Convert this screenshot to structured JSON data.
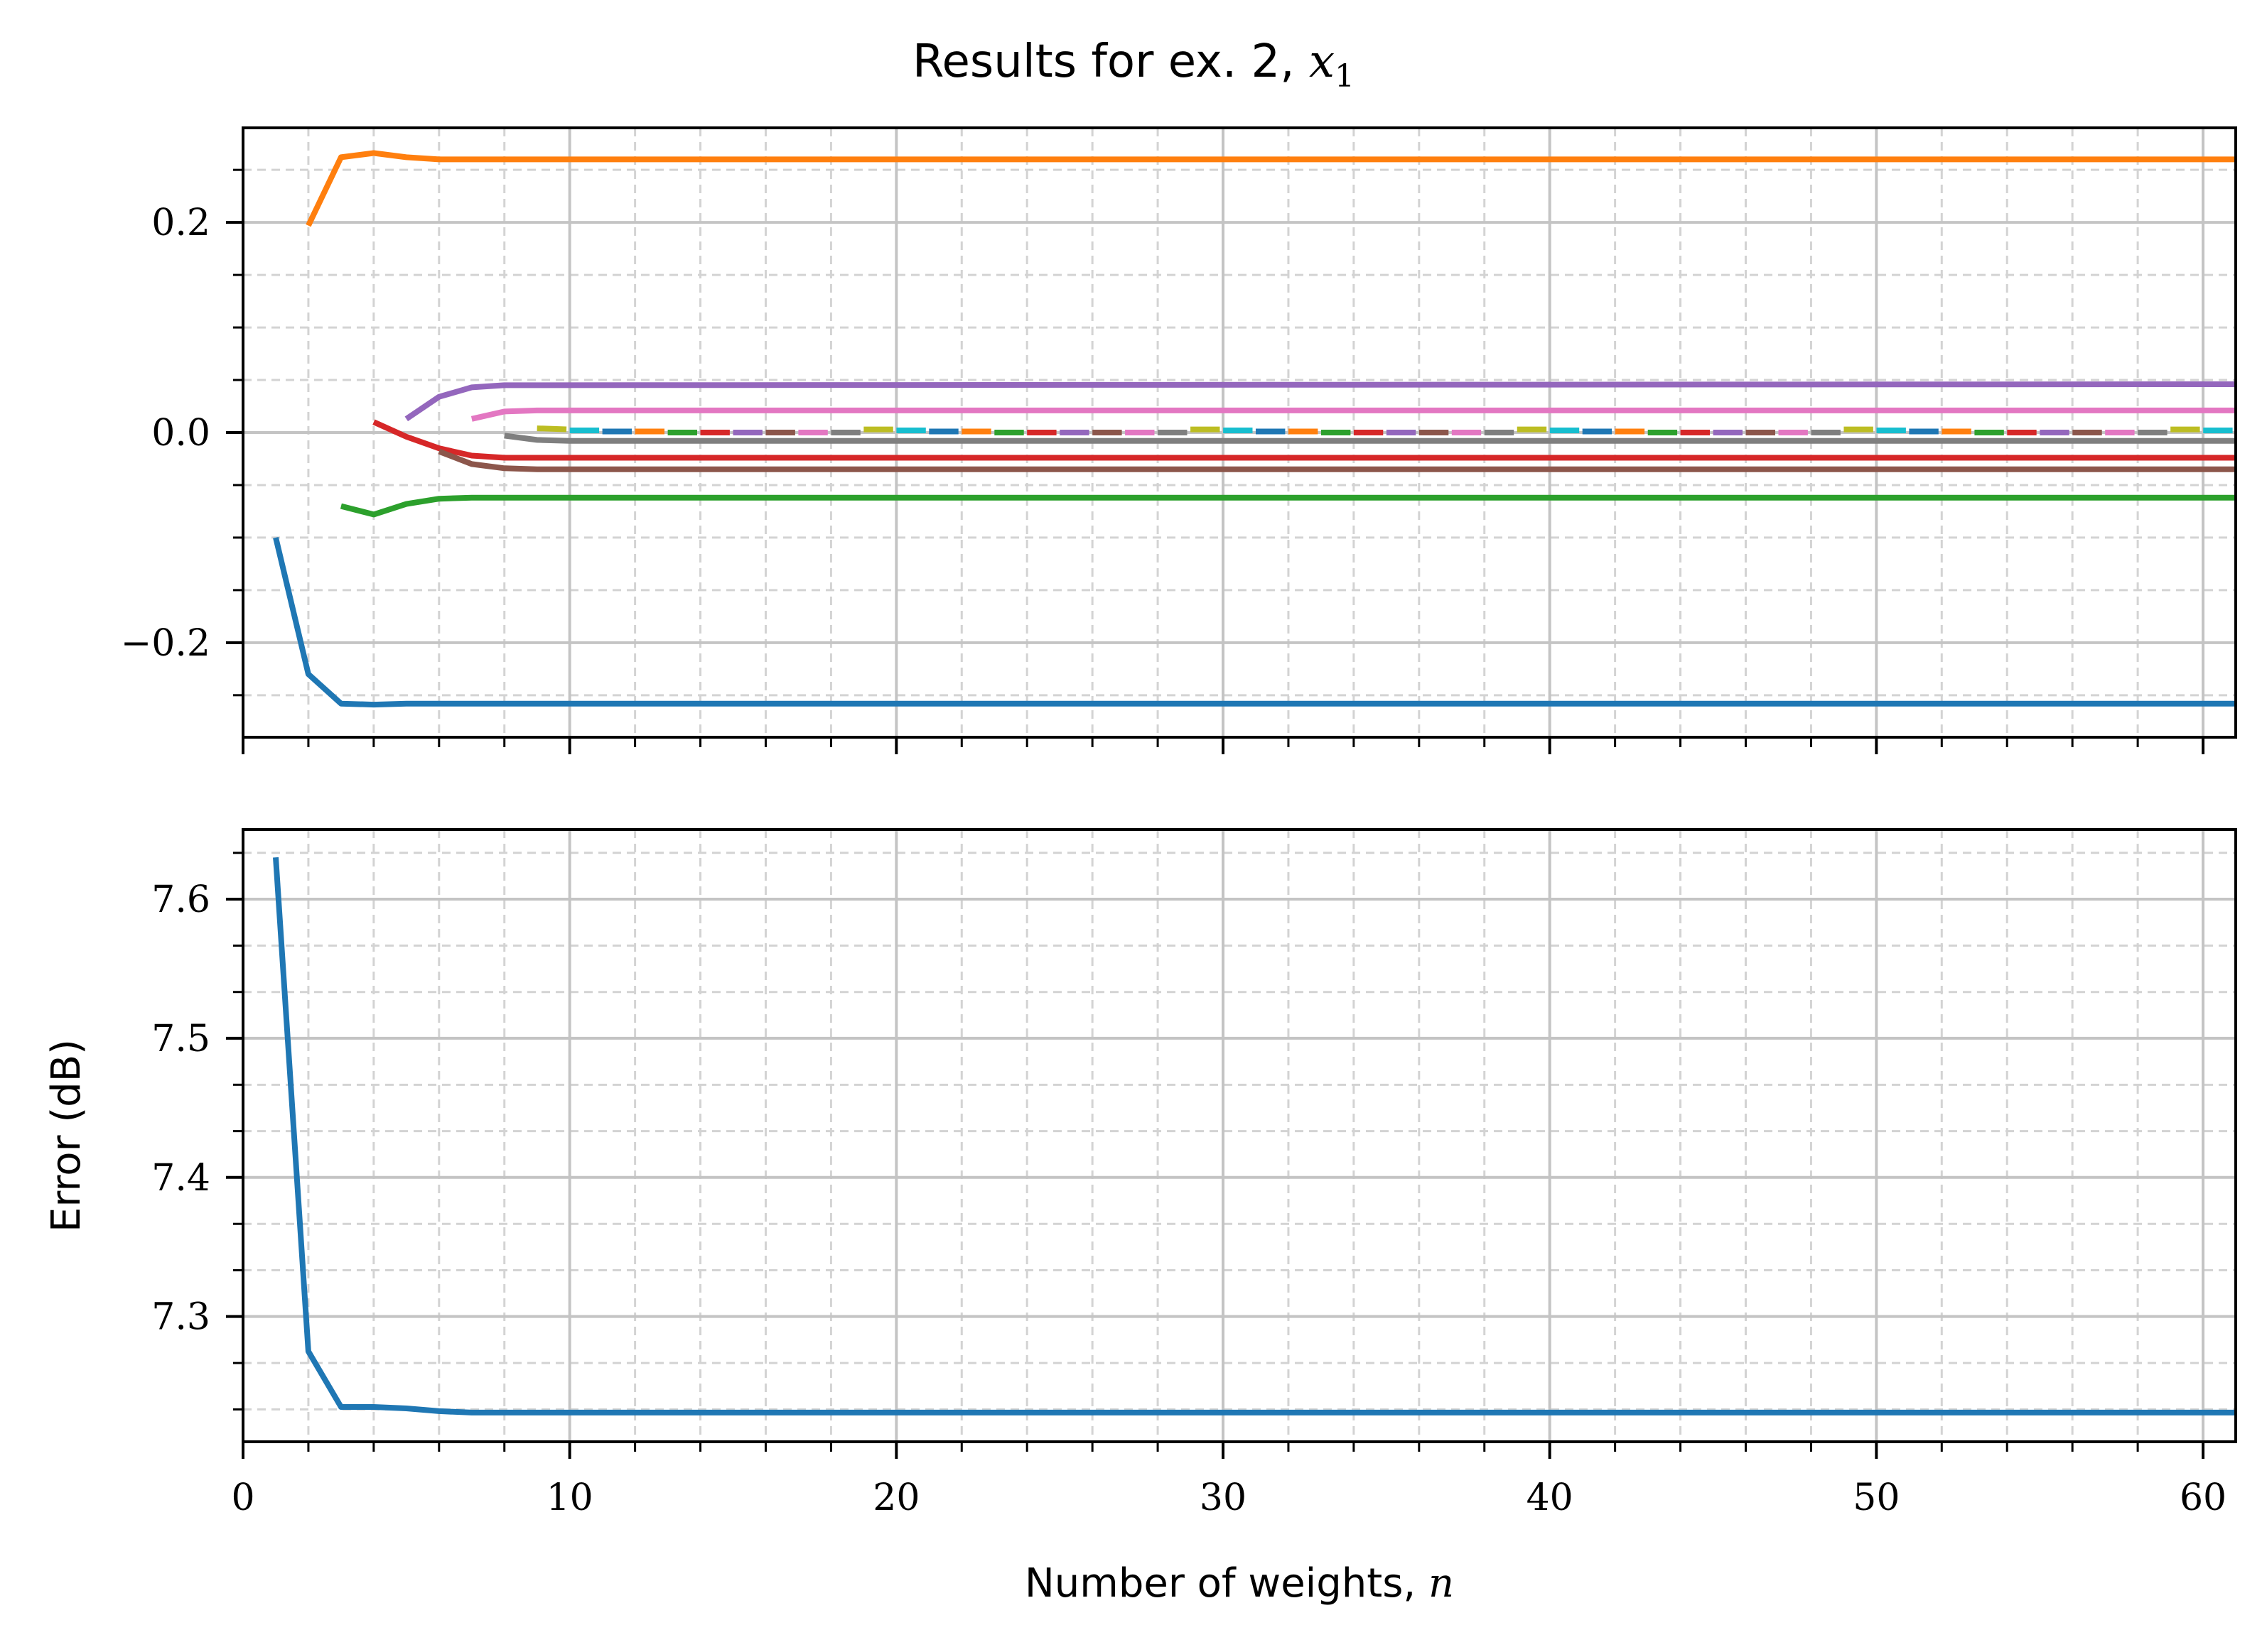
{
  "figure": {
    "title": "Results for ex. 2, ",
    "title_math": "x",
    "title_math_sub": "1"
  },
  "chart_data": [
    {
      "type": "line",
      "panel": "top",
      "title": "Results for ex. 2, x_1",
      "xlabel": "",
      "ylabel": "",
      "xlim": [
        0,
        61
      ],
      "ylim": [
        -0.29,
        0.29
      ],
      "x_major_ticks": [
        0,
        10,
        20,
        30,
        40,
        50,
        60
      ],
      "y_major_ticks": [
        -0.2,
        0.0,
        0.2
      ],
      "y_tick_labels": [
        "−0.2",
        "0.0",
        "0.2"
      ],
      "grid": "major solid, minor dashed",
      "legend": "none",
      "x_end": 61,
      "series": [
        {
          "color": "#1f77b4",
          "start": 1,
          "values": [
            -0.1,
            -0.23,
            -0.258,
            -0.259,
            -0.258,
            -0.258
          ],
          "tail": -0.258
        },
        {
          "color": "#ff7f0e",
          "start": 2,
          "values": [
            0.197,
            0.262,
            0.266,
            0.262,
            0.26
          ],
          "tail": 0.26
        },
        {
          "color": "#2ca02c",
          "start": 3,
          "values": [
            -0.07,
            -0.078,
            -0.068,
            -0.063,
            -0.062
          ],
          "tail": -0.062
        },
        {
          "color": "#d62728",
          "start": 4,
          "values": [
            0.01,
            -0.004,
            -0.015,
            -0.022,
            -0.024
          ],
          "tail": -0.024
        },
        {
          "color": "#9467bd",
          "start": 5,
          "values": [
            0.013,
            0.034,
            0.043,
            0.045
          ],
          "tail": 0.046
        },
        {
          "color": "#8c564b",
          "start": 6,
          "values": [
            -0.018,
            -0.03,
            -0.034,
            -0.035
          ],
          "tail": -0.035
        },
        {
          "color": "#e377c2",
          "start": 7,
          "values": [
            0.013,
            0.02,
            0.021
          ],
          "tail": 0.021
        },
        {
          "color": "#7f7f7f",
          "start": 8,
          "values": [
            -0.003,
            -0.007,
            -0.008
          ],
          "tail": -0.008
        },
        {
          "color": "#bcbd22",
          "start": 9,
          "values": [
            0.004,
            0.003
          ],
          "tail": 0.003,
          "dashed": true
        },
        {
          "color": "#17becf",
          "start": 10,
          "values": [
            0.002
          ],
          "tail": 0.002,
          "dashed": true
        },
        {
          "color": "#1f77b4",
          "start": 11,
          "values": [
            0.001
          ],
          "tail": 0.001,
          "dashed": true
        },
        {
          "color": "#ff7f0e",
          "start": 12,
          "values": [
            0.001
          ],
          "tail": 0.001,
          "dashed": true
        },
        {
          "color": "#2ca02c",
          "start": 13,
          "values": [
            0.0
          ],
          "tail": 0.0,
          "dashed": true
        },
        {
          "color": "#d62728",
          "start": 14,
          "values": [
            0.0
          ],
          "tail": 0.0,
          "dashed": true
        },
        {
          "color": "#9467bd",
          "start": 15,
          "values": [
            0.0
          ],
          "tail": 0.0,
          "dashed": true
        },
        {
          "color": "#8c564b",
          "start": 16,
          "values": [
            0.0
          ],
          "tail": 0.0,
          "dashed": true
        },
        {
          "color": "#e377c2",
          "start": 17,
          "values": [
            0.0
          ],
          "tail": 0.0,
          "dashed": true
        },
        {
          "color": "#7f7f7f",
          "start": 18,
          "values": [
            0.0
          ],
          "tail": 0.0,
          "dashed": true
        }
      ]
    },
    {
      "type": "line",
      "panel": "bottom",
      "title": "",
      "xlabel": "Number of weights, ",
      "xlabel_math": "n",
      "ylabel": "Error (dB)",
      "xlim": [
        0,
        61
      ],
      "ylim": [
        7.21,
        7.65
      ],
      "x_major_ticks": [
        0,
        10,
        20,
        30,
        40,
        50,
        60
      ],
      "x_tick_labels": [
        "0",
        "10",
        "20",
        "30",
        "40",
        "50",
        "60"
      ],
      "y_major_ticks": [
        7.3,
        7.4,
        7.5,
        7.6
      ],
      "y_tick_labels": [
        "7.3",
        "7.4",
        "7.5",
        "7.6"
      ],
      "grid": "major solid, minor dashed",
      "legend": "none",
      "series": [
        {
          "color": "#1f77b4",
          "x": [
            1,
            2,
            3,
            4,
            5,
            6,
            7,
            8,
            9,
            10,
            20,
            30,
            40,
            50,
            61
          ],
          "values": [
            7.63,
            7.275,
            7.235,
            7.235,
            7.234,
            7.232,
            7.231,
            7.231,
            7.231,
            7.231,
            7.231,
            7.231,
            7.231,
            7.231,
            7.231
          ]
        }
      ]
    }
  ]
}
